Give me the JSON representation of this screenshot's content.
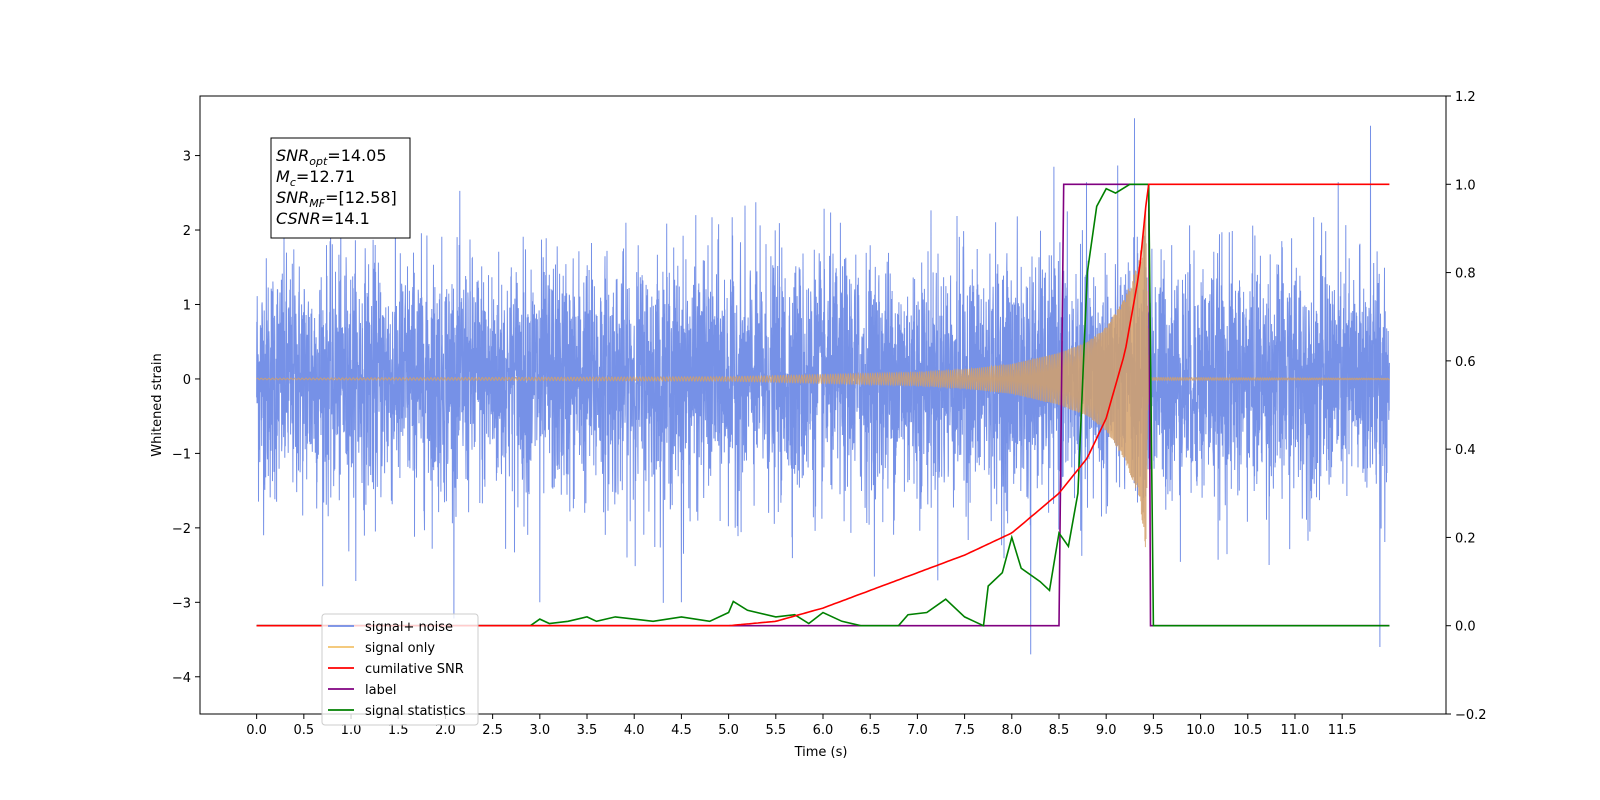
{
  "chart_data": {
    "type": "line",
    "xlabel": "Time (s)",
    "ylabel": "Whitened strain",
    "xlim": [
      -0.6,
      12.6
    ],
    "ylim": [
      -4.5,
      3.8
    ],
    "y2lim": [
      -0.2,
      1.2
    ],
    "x_ticks": [
      "0.0",
      "0.5",
      "1.0",
      "1.5",
      "2.0",
      "2.5",
      "3.0",
      "3.5",
      "4.0",
      "4.5",
      "5.0",
      "5.5",
      "6.0",
      "6.5",
      "7.0",
      "7.5",
      "8.0",
      "8.5",
      "9.0",
      "9.5",
      "10.0",
      "10.5",
      "11.0",
      "11.5"
    ],
    "y_ticks": [
      "3",
      "2",
      "1",
      "0",
      "−1",
      "−2",
      "−3",
      "−4"
    ],
    "y2_ticks": [
      "1.2",
      "1.0",
      "0.8",
      "0.6",
      "0.4",
      "0.2",
      "0.0",
      "−0.2"
    ],
    "annotation": [
      {
        "base": "SNR",
        "sub": "opt",
        "value": "=14.05"
      },
      {
        "base": "M",
        "sub": "c",
        "value": "=12.71"
      },
      {
        "base": "SNR",
        "sub": "MF",
        "value": "=[12.58]"
      },
      {
        "base": "CSNR",
        "sub": "",
        "value": "=14.1"
      }
    ],
    "legend_position": "lower-left",
    "legend": [
      {
        "label": "signal+ noise",
        "color": "#6f8be6"
      },
      {
        "label": "signal only",
        "color": "#f2c26b"
      },
      {
        "label": "cumilative SNR",
        "color": "#ff0000"
      },
      {
        "label": "label",
        "color": "#800080"
      },
      {
        "label": "signal statistics",
        "color": "#008000"
      }
    ],
    "series": [
      {
        "name": "signal+ noise",
        "axis": "left",
        "color": "#6f8be6",
        "t_range": [
          0.0,
          12.0
        ],
        "amplitude_std": 0.8,
        "peak_spikes": [
          [
            8.2,
            -3.7
          ],
          [
            9.3,
            3.5
          ],
          [
            11.9,
            -3.6
          ],
          [
            4.5,
            -3.0
          ],
          [
            3.0,
            -3.0
          ],
          [
            11.8,
            3.4
          ]
        ]
      },
      {
        "name": "signal only",
        "axis": "left",
        "color": "#d4a06a",
        "envelope": [
          [
            0.0,
            0.01
          ],
          [
            5.0,
            0.03
          ],
          [
            6.0,
            0.06
          ],
          [
            7.0,
            0.09
          ],
          [
            7.5,
            0.13
          ],
          [
            8.0,
            0.2
          ],
          [
            8.5,
            0.35
          ],
          [
            8.8,
            0.5
          ],
          [
            9.0,
            0.7
          ],
          [
            9.2,
            1.1
          ],
          [
            9.35,
            1.6
          ],
          [
            9.42,
            2.3
          ],
          [
            9.45,
            0.02
          ],
          [
            12.0,
            0.01
          ]
        ]
      },
      {
        "name": "cumilative SNR",
        "axis": "right",
        "color": "#ff0000",
        "points": [
          [
            0.0,
            0.0
          ],
          [
            5.0,
            0.0
          ],
          [
            5.5,
            0.01
          ],
          [
            6.0,
            0.04
          ],
          [
            6.5,
            0.08
          ],
          [
            7.0,
            0.12
          ],
          [
            7.5,
            0.16
          ],
          [
            8.0,
            0.21
          ],
          [
            8.5,
            0.3
          ],
          [
            8.8,
            0.38
          ],
          [
            9.0,
            0.47
          ],
          [
            9.2,
            0.62
          ],
          [
            9.35,
            0.8
          ],
          [
            9.42,
            0.95
          ],
          [
            9.45,
            1.0
          ],
          [
            12.0,
            1.0
          ]
        ]
      },
      {
        "name": "label",
        "axis": "right",
        "color": "#800080",
        "points": [
          [
            0.0,
            0.0
          ],
          [
            8.5,
            0.0
          ],
          [
            8.55,
            1.0
          ],
          [
            9.45,
            1.0
          ],
          [
            9.47,
            0.0
          ],
          [
            12.0,
            0.0
          ]
        ]
      },
      {
        "name": "signal statistics",
        "axis": "right",
        "color": "#008000",
        "points": [
          [
            0.0,
            0.0
          ],
          [
            2.9,
            0.0
          ],
          [
            3.0,
            0.015
          ],
          [
            3.1,
            0.005
          ],
          [
            3.3,
            0.01
          ],
          [
            3.5,
            0.02
          ],
          [
            3.6,
            0.01
          ],
          [
            3.8,
            0.02
          ],
          [
            4.2,
            0.01
          ],
          [
            4.5,
            0.02
          ],
          [
            4.8,
            0.01
          ],
          [
            5.0,
            0.03
          ],
          [
            5.05,
            0.055
          ],
          [
            5.2,
            0.035
          ],
          [
            5.5,
            0.02
          ],
          [
            5.7,
            0.025
          ],
          [
            5.85,
            0.005
          ],
          [
            6.0,
            0.03
          ],
          [
            6.2,
            0.01
          ],
          [
            6.4,
            0.0
          ],
          [
            6.8,
            0.0
          ],
          [
            6.9,
            0.025
          ],
          [
            7.1,
            0.03
          ],
          [
            7.3,
            0.06
          ],
          [
            7.5,
            0.02
          ],
          [
            7.6,
            0.01
          ],
          [
            7.7,
            0.0
          ],
          [
            7.75,
            0.09
          ],
          [
            7.9,
            0.12
          ],
          [
            8.0,
            0.2
          ],
          [
            8.1,
            0.13
          ],
          [
            8.3,
            0.1
          ],
          [
            8.4,
            0.08
          ],
          [
            8.5,
            0.21
          ],
          [
            8.6,
            0.18
          ],
          [
            8.7,
            0.3
          ],
          [
            8.8,
            0.8
          ],
          [
            8.9,
            0.95
          ],
          [
            9.0,
            0.99
          ],
          [
            9.1,
            0.98
          ],
          [
            9.25,
            1.0
          ],
          [
            9.45,
            1.0
          ],
          [
            9.5,
            0.0
          ],
          [
            12.0,
            0.0
          ]
        ]
      }
    ]
  }
}
